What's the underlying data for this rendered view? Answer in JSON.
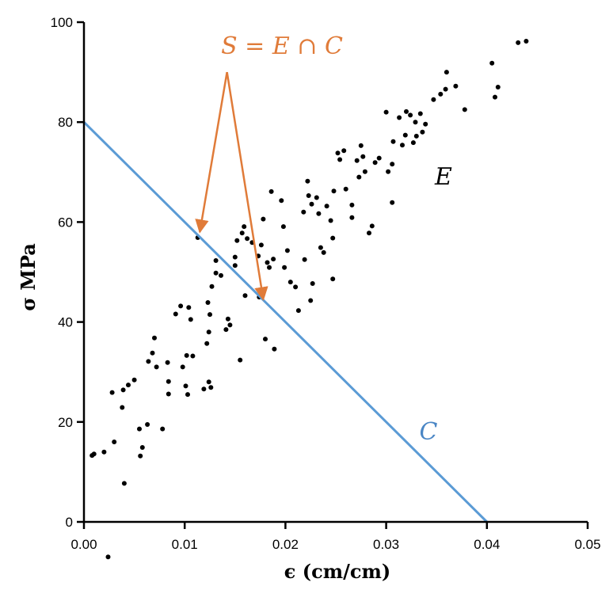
{
  "chart_data": {
    "type": "scatter",
    "xlabel": "ϵ (cm/cm)",
    "ylabel": "σ  MPa",
    "xlim": [
      0,
      0.05
    ],
    "ylim": [
      0,
      100
    ],
    "x_ticks": [
      "0.00",
      "0.01",
      "0.02",
      "0.03",
      "0.04",
      "0.05"
    ],
    "y_ticks": [
      "0",
      "20",
      "40",
      "60",
      "80",
      "100"
    ],
    "grid": false,
    "series": [
      {
        "name": "E",
        "color": "#000000",
        "points": [
          [
            0.0008,
            13.3
          ],
          [
            0.001,
            13.6
          ],
          [
            0.002,
            14.0
          ],
          [
            0.0024,
            -7.0
          ],
          [
            0.0028,
            25.9
          ],
          [
            0.003,
            16.0
          ],
          [
            0.0038,
            22.9
          ],
          [
            0.0039,
            26.4
          ],
          [
            0.004,
            7.7
          ],
          [
            0.0044,
            27.4
          ],
          [
            0.005,
            28.4
          ],
          [
            0.0055,
            18.6
          ],
          [
            0.0056,
            13.2
          ],
          [
            0.0058,
            14.9
          ],
          [
            0.0063,
            19.5
          ],
          [
            0.0064,
            32.1
          ],
          [
            0.0068,
            33.8
          ],
          [
            0.007,
            36.8
          ],
          [
            0.0072,
            31.0
          ],
          [
            0.0078,
            18.6
          ],
          [
            0.0083,
            31.9
          ],
          [
            0.0084,
            28.1
          ],
          [
            0.0084,
            25.6
          ],
          [
            0.0091,
            41.6
          ],
          [
            0.0096,
            43.2
          ],
          [
            0.0098,
            31.0
          ],
          [
            0.0101,
            27.2
          ],
          [
            0.0102,
            33.3
          ],
          [
            0.0103,
            25.5
          ],
          [
            0.0104,
            42.9
          ],
          [
            0.0106,
            40.5
          ],
          [
            0.0108,
            33.2
          ],
          [
            0.0113,
            56.9
          ],
          [
            0.0119,
            26.6
          ],
          [
            0.0122,
            35.7
          ],
          [
            0.0123,
            43.9
          ],
          [
            0.0124,
            28.0
          ],
          [
            0.0124,
            38.0
          ],
          [
            0.0125,
            41.5
          ],
          [
            0.0126,
            26.9
          ],
          [
            0.0127,
            47.1
          ],
          [
            0.0131,
            49.8
          ],
          [
            0.0131,
            52.3
          ],
          [
            0.0136,
            49.3
          ],
          [
            0.0141,
            38.5
          ],
          [
            0.0143,
            40.6
          ],
          [
            0.0145,
            39.4
          ],
          [
            0.015,
            53.0
          ],
          [
            0.015,
            51.3
          ],
          [
            0.0152,
            56.3
          ],
          [
            0.0155,
            32.4
          ],
          [
            0.0157,
            57.8
          ],
          [
            0.0159,
            59.1
          ],
          [
            0.016,
            45.3
          ],
          [
            0.0162,
            56.7
          ],
          [
            0.0167,
            55.9
          ],
          [
            0.0173,
            53.2
          ],
          [
            0.0174,
            45.0
          ],
          [
            0.0176,
            55.4
          ],
          [
            0.0178,
            60.6
          ],
          [
            0.018,
            36.6
          ],
          [
            0.0182,
            51.9
          ],
          [
            0.0184,
            50.9
          ],
          [
            0.0186,
            66.1
          ],
          [
            0.0188,
            52.6
          ],
          [
            0.0189,
            34.6
          ],
          [
            0.0196,
            64.3
          ],
          [
            0.0198,
            59.1
          ],
          [
            0.0199,
            50.9
          ],
          [
            0.0202,
            54.3
          ],
          [
            0.0205,
            48.0
          ],
          [
            0.021,
            47.0
          ],
          [
            0.0213,
            42.3
          ],
          [
            0.0218,
            62.0
          ],
          [
            0.0219,
            52.5
          ],
          [
            0.0222,
            68.2
          ],
          [
            0.0223,
            65.3
          ],
          [
            0.0225,
            44.3
          ],
          [
            0.0226,
            63.6
          ],
          [
            0.0227,
            47.7
          ],
          [
            0.0231,
            64.9
          ],
          [
            0.0233,
            61.7
          ],
          [
            0.0235,
            54.9
          ],
          [
            0.0238,
            53.9
          ],
          [
            0.0241,
            63.2
          ],
          [
            0.0245,
            60.3
          ],
          [
            0.0247,
            56.8
          ],
          [
            0.0247,
            48.6
          ],
          [
            0.0248,
            66.2
          ],
          [
            0.0252,
            73.8
          ],
          [
            0.0254,
            72.5
          ],
          [
            0.0258,
            74.3
          ],
          [
            0.026,
            66.6
          ],
          [
            0.0266,
            60.9
          ],
          [
            0.0266,
            63.4
          ],
          [
            0.0271,
            72.3
          ],
          [
            0.0273,
            69.0
          ],
          [
            0.0275,
            75.3
          ],
          [
            0.0277,
            73.1
          ],
          [
            0.0279,
            70.1
          ],
          [
            0.0283,
            57.8
          ],
          [
            0.0286,
            59.2
          ],
          [
            0.0289,
            71.9
          ],
          [
            0.0293,
            72.8
          ],
          [
            0.03,
            82.0
          ],
          [
            0.0302,
            70.1
          ],
          [
            0.0306,
            71.6
          ],
          [
            0.0306,
            63.9
          ],
          [
            0.0307,
            76.1
          ],
          [
            0.0313,
            80.9
          ],
          [
            0.0316,
            75.4
          ],
          [
            0.0319,
            77.4
          ],
          [
            0.032,
            82.1
          ],
          [
            0.0324,
            81.4
          ],
          [
            0.0327,
            75.9
          ],
          [
            0.0329,
            80.0
          ],
          [
            0.033,
            77.2
          ],
          [
            0.0334,
            81.7
          ],
          [
            0.0336,
            78.0
          ],
          [
            0.0339,
            79.6
          ],
          [
            0.0347,
            84.5
          ],
          [
            0.0354,
            85.6
          ],
          [
            0.0359,
            86.6
          ],
          [
            0.036,
            90.0
          ],
          [
            0.0369,
            87.2
          ],
          [
            0.0378,
            82.5
          ],
          [
            0.0405,
            91.8
          ],
          [
            0.0408,
            85.0
          ],
          [
            0.0411,
            87.0
          ],
          [
            0.0431,
            95.9
          ],
          [
            0.0439,
            96.2
          ]
        ]
      },
      {
        "name": "C",
        "type": "line",
        "color": "#5b9bd5",
        "points": [
          [
            0.0,
            80.0
          ],
          [
            0.04,
            0.0
          ]
        ]
      }
    ],
    "annotations": [
      {
        "text": "S = E ∩ C",
        "color": "#e07b39"
      },
      {
        "text": "E",
        "color": "#000000"
      },
      {
        "text": "C",
        "color": "#4a86c5"
      }
    ],
    "arrows": [
      {
        "from": [
          0.0142,
          90.0
        ],
        "to": [
          0.0115,
          58.0
        ],
        "color": "#e07b39"
      },
      {
        "from": [
          0.0142,
          90.0
        ],
        "to": [
          0.0178,
          44.5
        ],
        "color": "#e07b39"
      }
    ]
  }
}
